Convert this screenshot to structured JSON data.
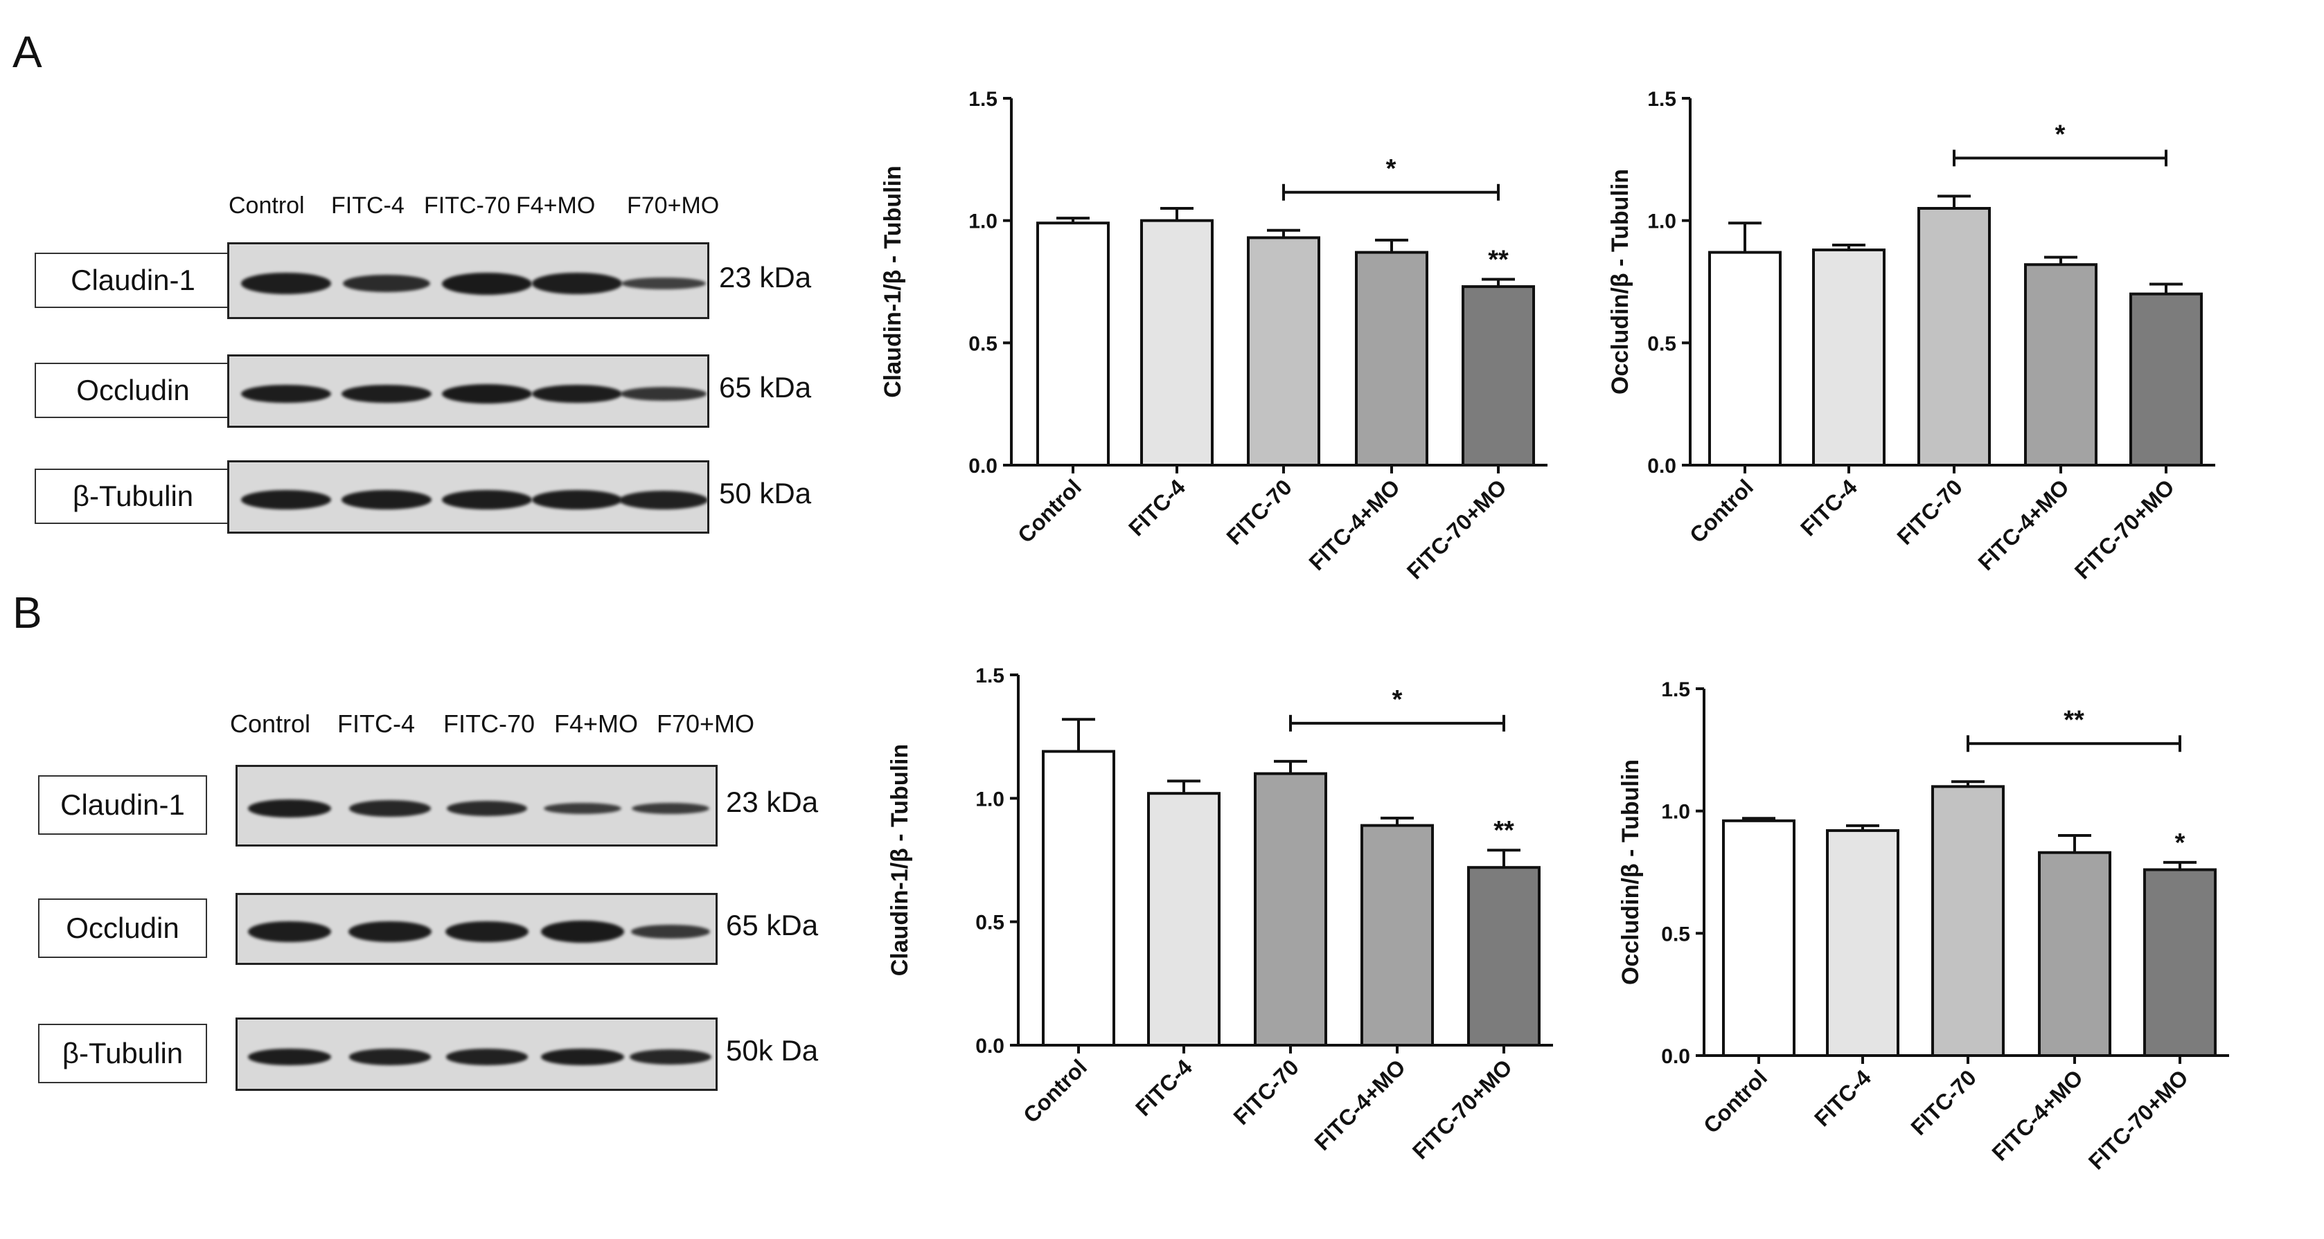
{
  "panels": [
    {
      "letter": "A",
      "lanes": [
        "Control",
        "FITC-4",
        "FITC-70",
        "F4+MO",
        "F70+MO"
      ],
      "rows": [
        {
          "protein": "Claudin-1",
          "kda": "23 kDa",
          "bands": [
            0.95,
            0.8,
            1.0,
            0.95,
            0.55
          ]
        },
        {
          "protein": "Occludin",
          "kda": "65 kDa",
          "bands": [
            0.95,
            0.95,
            1.0,
            0.95,
            0.7
          ]
        },
        {
          "protein": "β-Tubulin",
          "kda": "50 kDa",
          "bands": [
            0.95,
            0.95,
            0.95,
            0.95,
            0.9
          ]
        }
      ]
    },
    {
      "letter": "B",
      "lanes": [
        "Control",
        "FITC-4",
        "FITC-70",
        "F4+MO",
        "F70+MO"
      ],
      "rows": [
        {
          "protein": "Claudin-1",
          "kda": "23 kDa",
          "bands": [
            0.95,
            0.85,
            0.8,
            0.6,
            0.6
          ]
        },
        {
          "protein": "Occludin",
          "kda": "65 kDa",
          "bands": [
            0.95,
            0.95,
            0.95,
            1.0,
            0.65
          ]
        },
        {
          "protein": "β-Tubulin",
          "kda": "50k Da",
          "bands": [
            0.95,
            0.9,
            0.9,
            0.95,
            0.85
          ]
        }
      ]
    }
  ],
  "chart_data": [
    {
      "type": "bar",
      "panel": "A",
      "ylabel": "Claudin-1/β - Tubulin",
      "categories": [
        "Control",
        "FITC-4",
        "FITC-70",
        "FITC-4+MO",
        "FITC-70+MO"
      ],
      "values": [
        0.99,
        1.0,
        0.93,
        0.87,
        0.73
      ],
      "errors": [
        0.02,
        0.05,
        0.03,
        0.05,
        0.03
      ],
      "bar_colors": [
        "#ffffff",
        "#e4e4e4",
        "#c2c2c2",
        "#a3a3a3",
        "#7c7c7c"
      ],
      "ylim": [
        0,
        1.5
      ],
      "yticks": [
        "0.0",
        "0.5",
        "1.0",
        "1.5"
      ],
      "bracket": {
        "from": 2,
        "to": 4,
        "label": "*"
      },
      "bar_marks": [
        {
          "index": 4,
          "label": "**"
        }
      ]
    },
    {
      "type": "bar",
      "panel": "A",
      "ylabel": "Occludin/β - Tubulin",
      "categories": [
        "Control",
        "FITC-4",
        "FITC-70",
        "FITC-4+MO",
        "FITC-70+MO"
      ],
      "values": [
        0.87,
        0.88,
        1.05,
        0.82,
        0.7
      ],
      "errors": [
        0.12,
        0.02,
        0.05,
        0.03,
        0.04
      ],
      "bar_colors": [
        "#ffffff",
        "#e4e4e4",
        "#c2c2c2",
        "#a3a3a3",
        "#7c7c7c"
      ],
      "ylim": [
        0,
        1.5
      ],
      "yticks": [
        "0.0",
        "0.5",
        "1.0",
        "1.5"
      ],
      "bracket": {
        "from": 2,
        "to": 4,
        "label": "*"
      },
      "bar_marks": []
    },
    {
      "type": "bar",
      "panel": "B",
      "ylabel": "Claudin-1/β - Tubulin",
      "categories": [
        "Control",
        "FITC-4",
        "FITC-70",
        "FITC-4+MO",
        "FITC-70+MO"
      ],
      "values": [
        1.19,
        1.02,
        1.1,
        0.89,
        0.72
      ],
      "errors": [
        0.13,
        0.05,
        0.05,
        0.03,
        0.07
      ],
      "bar_colors": [
        "#ffffff",
        "#e4e4e4",
        "#a3a3a3",
        "#a3a3a3",
        "#7c7c7c"
      ],
      "ylim": [
        0,
        1.5
      ],
      "yticks": [
        "0.0",
        "0.5",
        "1.0",
        "1.5"
      ],
      "bracket": {
        "from": 2,
        "to": 4,
        "label": "*"
      },
      "bar_marks": [
        {
          "index": 4,
          "label": "**"
        }
      ]
    },
    {
      "type": "bar",
      "panel": "B",
      "ylabel": "Occludin/β - Tubulin",
      "categories": [
        "Control",
        "FITC-4",
        "FITC-70",
        "FITC-4+MO",
        "FITC-70+MO"
      ],
      "values": [
        0.96,
        0.92,
        1.1,
        0.83,
        0.76
      ],
      "errors": [
        0.01,
        0.02,
        0.02,
        0.07,
        0.03
      ],
      "bar_colors": [
        "#ffffff",
        "#e4e4e4",
        "#c2c2c2",
        "#a3a3a3",
        "#7c7c7c"
      ],
      "ylim": [
        0,
        1.5
      ],
      "yticks": [
        "0.0",
        "0.5",
        "1.0",
        "1.5"
      ],
      "bracket": {
        "from": 2,
        "to": 4,
        "label": "**"
      },
      "bar_marks": [
        {
          "index": 4,
          "label": "*"
        }
      ]
    }
  ]
}
